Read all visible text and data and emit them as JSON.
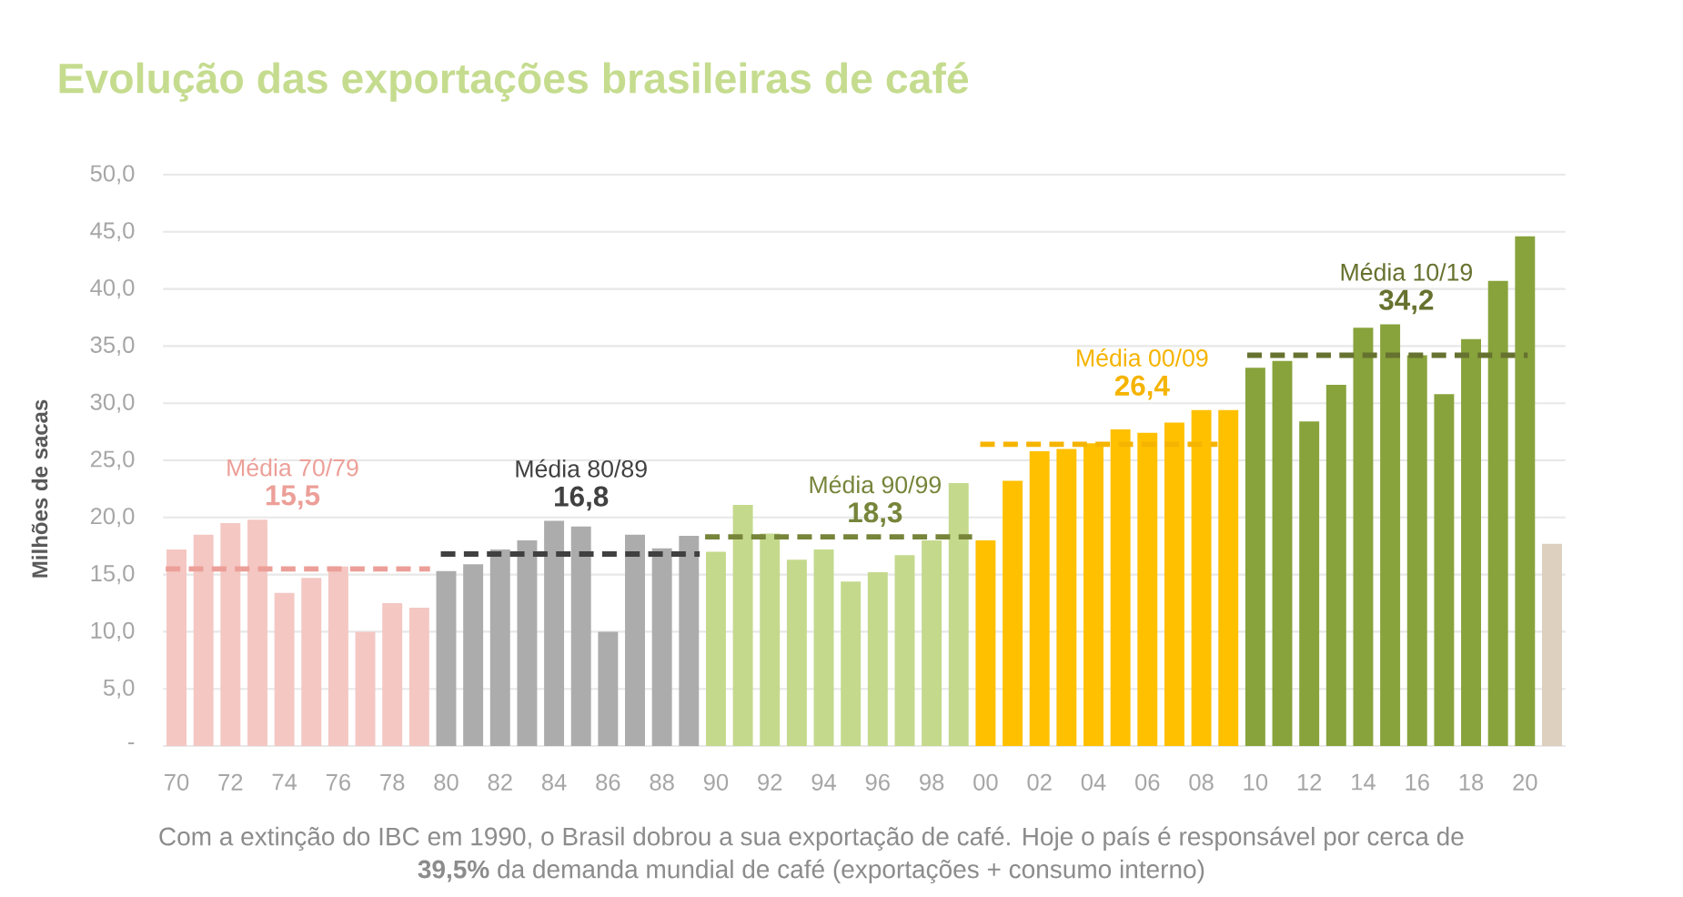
{
  "chart_data": {
    "type": "bar",
    "title": "Evolução das exportações brasileiras de café",
    "ylabel": "Milhões de sacas",
    "x": [
      1970,
      1971,
      1972,
      1973,
      1974,
      1975,
      1976,
      1977,
      1978,
      1979,
      1980,
      1981,
      1982,
      1983,
      1984,
      1985,
      1986,
      1987,
      1988,
      1989,
      1990,
      1991,
      1992,
      1993,
      1994,
      1995,
      1996,
      1997,
      1998,
      1999,
      2000,
      2001,
      2002,
      2003,
      2004,
      2005,
      2006,
      2007,
      2008,
      2009,
      2010,
      2011,
      2012,
      2013,
      2014,
      2015,
      2016,
      2017,
      2018,
      2019,
      2020,
      2021
    ],
    "xlim": [
      1969.5,
      2021.5
    ],
    "xticks": [
      {
        "value": 1970,
        "label": "70"
      },
      {
        "value": 1972,
        "label": "72"
      },
      {
        "value": 1974,
        "label": "74"
      },
      {
        "value": 1976,
        "label": "76"
      },
      {
        "value": 1978,
        "label": "78"
      },
      {
        "value": 1980,
        "label": "80"
      },
      {
        "value": 1982,
        "label": "82"
      },
      {
        "value": 1984,
        "label": "84"
      },
      {
        "value": 1986,
        "label": "86"
      },
      {
        "value": 1988,
        "label": "88"
      },
      {
        "value": 1990,
        "label": "90"
      },
      {
        "value": 1992,
        "label": "92"
      },
      {
        "value": 1994,
        "label": "94"
      },
      {
        "value": 1996,
        "label": "96"
      },
      {
        "value": 1998,
        "label": "98"
      },
      {
        "value": 2000,
        "label": "00"
      },
      {
        "value": 2002,
        "label": "02"
      },
      {
        "value": 2004,
        "label": "04"
      },
      {
        "value": 2006,
        "label": "06"
      },
      {
        "value": 2008,
        "label": "08"
      },
      {
        "value": 2010,
        "label": "10"
      },
      {
        "value": 2012,
        "label": "12"
      },
      {
        "value": 2014,
        "label": "14"
      },
      {
        "value": 2016,
        "label": "16"
      },
      {
        "value": 2018,
        "label": "18"
      },
      {
        "value": 2020,
        "label": "20"
      }
    ],
    "ylim": [
      0,
      50
    ],
    "yticks": [
      {
        "value": 0,
        "label": "-"
      },
      {
        "value": 5,
        "label": "5,0"
      },
      {
        "value": 10,
        "label": "10,0"
      },
      {
        "value": 15,
        "label": "15,0"
      },
      {
        "value": 20,
        "label": "20,0"
      },
      {
        "value": 25,
        "label": "25,0"
      },
      {
        "value": 30,
        "label": "30,0"
      },
      {
        "value": 35,
        "label": "35,0"
      },
      {
        "value": 40,
        "label": "40,0"
      },
      {
        "value": 45,
        "label": "45,0"
      },
      {
        "value": 50,
        "label": "50,0"
      }
    ],
    "grid": "y",
    "series": [
      {
        "values": [
          17.2,
          18.5,
          19.5,
          19.8,
          13.4,
          14.7,
          15.7,
          10.0,
          12.5,
          12.1,
          15.3,
          15.9,
          17.2,
          18.0,
          19.7,
          19.2,
          10.0,
          18.5,
          17.3,
          18.4,
          17.0,
          21.1,
          18.6,
          16.3,
          17.2,
          14.4,
          15.2,
          16.7,
          18.0,
          23.0,
          18.0,
          23.2,
          25.8,
          26.0,
          26.5,
          27.7,
          27.4,
          28.3,
          29.4,
          29.4,
          33.1,
          33.7,
          28.4,
          31.6,
          36.6,
          36.9,
          34.2,
          30.8,
          35.6,
          40.7,
          44.6,
          17.7
        ],
        "colors": [
          "#f4c7c3",
          "#f4c7c3",
          "#f4c7c3",
          "#f4c7c3",
          "#f4c7c3",
          "#f4c7c3",
          "#f4c7c3",
          "#f4c7c3",
          "#f4c7c3",
          "#f4c7c3",
          "#acacac",
          "#acacac",
          "#acacac",
          "#acacac",
          "#acacac",
          "#acacac",
          "#acacac",
          "#acacac",
          "#acacac",
          "#acacac",
          "#c4d98c",
          "#c4d98c",
          "#c4d98c",
          "#c4d98c",
          "#c4d98c",
          "#c4d98c",
          "#c4d98c",
          "#c4d98c",
          "#c4d98c",
          "#c4d98c",
          "#ffc000",
          "#ffc000",
          "#ffc000",
          "#ffc000",
          "#ffc000",
          "#ffc000",
          "#ffc000",
          "#ffc000",
          "#ffc000",
          "#ffc000",
          "#88a33c",
          "#88a33c",
          "#88a33c",
          "#88a33c",
          "#88a33c",
          "#88a33c",
          "#88a33c",
          "#88a33c",
          "#88a33c",
          "#88a33c",
          "#88a33c",
          "#ddd0bf"
        ]
      },
      {
        "type": "line",
        "name": "Média 70/79",
        "x": [
          1969.6,
          1974.3,
          1979.4
        ],
        "values": [
          15.5,
          15.5,
          15.5
        ],
        "value_labels": [
          null,
          "15,5",
          null
        ],
        "color": "#ec9f98",
        "line_style": "dashed",
        "marker": "none"
      },
      {
        "type": "line",
        "name": "Média 80/89",
        "x": [
          1979.8,
          1985.0,
          1989.4
        ],
        "values": [
          16.8,
          16.8,
          16.8
        ],
        "value_labels": [
          null,
          "16,8",
          null
        ],
        "color": "#404040",
        "line_style": "dashed",
        "marker": "none"
      },
      {
        "type": "line",
        "name": "Média 90/99",
        "x": [
          1989.6,
          1995.9,
          1999.5
        ],
        "values": [
          18.3,
          18.3,
          18.3
        ],
        "value_labels": [
          null,
          "18,3",
          null
        ],
        "color": "#76853a",
        "line_style": "dashed",
        "marker": "none"
      },
      {
        "type": "line",
        "name": "Média 00/09",
        "x": [
          1999.8,
          2005.8,
          2008.6
        ],
        "values": [
          26.4,
          26.4,
          26.4
        ],
        "value_labels": [
          null,
          "26,4",
          null
        ],
        "color": "#f5b400",
        "line_style": "dashed",
        "marker": "none"
      },
      {
        "type": "line",
        "name": "Média 10/19",
        "x": [
          2009.7,
          2015.6,
          2020.1
        ],
        "values": [
          34.2,
          34.2,
          34.2
        ],
        "value_labels": [
          null,
          "34,2",
          null
        ],
        "color": "#66722f",
        "line_style": "dashed",
        "marker": "none"
      }
    ],
    "annotations": [
      "Com a extinção do IBC em 1990, o Brasil dobrou a sua exportação de café. Hoje o país é responsável por cerca de **39,5%** da demanda mundial de café (exportações + consumo interno)"
    ]
  }
}
